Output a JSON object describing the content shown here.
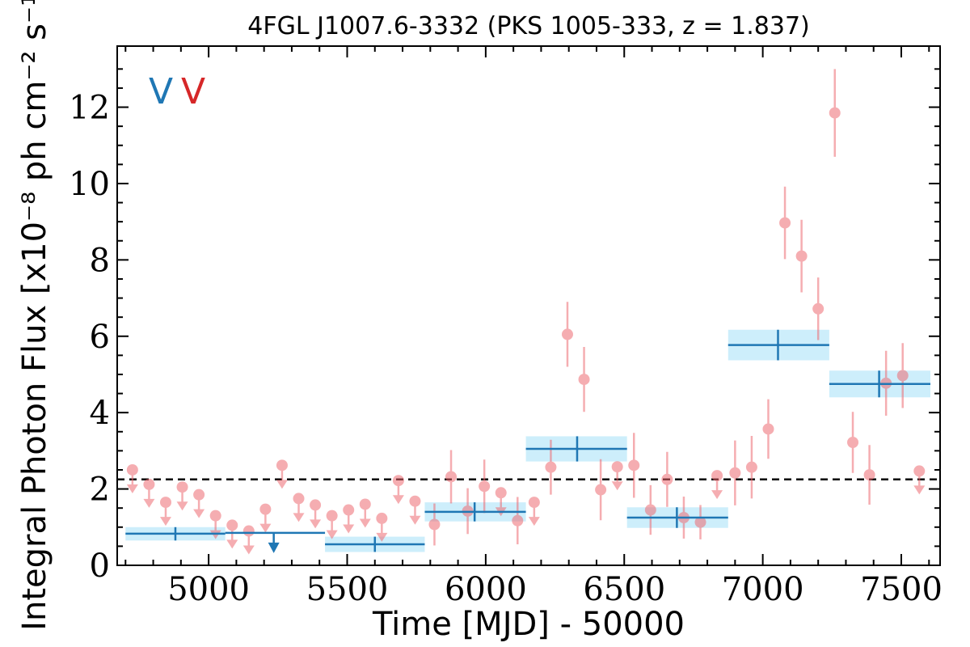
{
  "chart_data": {
    "type": "scatter",
    "title": "4FGL J1007.6-3332 (PKS 1005-333, z = 1.837)",
    "xlabel": "Time [MJD] - 50000",
    "ylabel": "Integral Photon Flux [x10⁻⁸ ph cm⁻² s⁻¹]",
    "xlim": [
      4670,
      7640
    ],
    "ylim": [
      0,
      13.6
    ],
    "x_ticks": [
      5000,
      5500,
      6000,
      6500,
      7000,
      7500
    ],
    "y_ticks": [
      0,
      2,
      4,
      6,
      8,
      10,
      12
    ],
    "x_tick_labels": [
      "5000",
      "5500",
      "6000",
      "6500",
      "7000",
      "7500"
    ],
    "y_tick_labels": [
      "0",
      "2",
      "4",
      "6",
      "8",
      "10",
      "12"
    ],
    "grid": false,
    "markers": [
      {
        "label": "V",
        "color": "#1f77b4"
      },
      {
        "label": "V",
        "color": "#d62728"
      }
    ],
    "reference_line": {
      "y": 2.25,
      "style": "dashed",
      "color": "#000000"
    },
    "colors": {
      "fine_points": "#ee6b72",
      "coarse_bins": "#1f77b4",
      "coarse_band": "#cdeefb",
      "upper_limit_coarse": "#1f77b4"
    },
    "coarse_bins": [
      {
        "x_start": 4700,
        "x_end": 5060,
        "x": 4880,
        "y": 0.83,
        "band": [
          0.65,
          1.0
        ]
      },
      {
        "x_start": 5420,
        "x_end": 5780,
        "x": 5600,
        "y": 0.55,
        "band": [
          0.35,
          0.75
        ]
      },
      {
        "x_start": 5780,
        "x_end": 6145,
        "x": 5960,
        "y": 1.4,
        "band": [
          1.15,
          1.65
        ]
      },
      {
        "x_start": 6145,
        "x_end": 6510,
        "x": 6330,
        "y": 3.05,
        "band": [
          2.72,
          3.38
        ]
      },
      {
        "x_start": 6510,
        "x_end": 6875,
        "x": 6690,
        "y": 1.25,
        "band": [
          0.98,
          1.52
        ]
      },
      {
        "x_start": 6875,
        "x_end": 7240,
        "x": 7055,
        "y": 5.77,
        "band": [
          5.37,
          6.17
        ]
      },
      {
        "x_start": 7240,
        "x_end": 7605,
        "x": 7420,
        "y": 4.75,
        "band": [
          4.4,
          5.1
        ]
      }
    ],
    "coarse_upper_limits": [
      {
        "x_start": 5060,
        "x_end": 5420,
        "x": 5235,
        "y": 0.85
      }
    ],
    "fine_points": [
      {
        "x": 5815,
        "y": 1.07,
        "err": 0.55
      },
      {
        "x": 5875,
        "y": 2.32,
        "err": 0.7
      },
      {
        "x": 5935,
        "y": 1.42,
        "err": 0.6
      },
      {
        "x": 5995,
        "y": 2.07,
        "err": 0.7
      },
      {
        "x": 6115,
        "y": 1.17,
        "err": 0.62
      },
      {
        "x": 6235,
        "y": 2.57,
        "err": 0.72
      },
      {
        "x": 6295,
        "y": 6.05,
        "err": 0.85
      },
      {
        "x": 6355,
        "y": 4.87,
        "err": 0.85
      },
      {
        "x": 6415,
        "y": 1.98,
        "err": 0.8
      },
      {
        "x": 6535,
        "y": 2.62,
        "err": 0.85
      },
      {
        "x": 6595,
        "y": 1.45,
        "err": 0.65
      },
      {
        "x": 6655,
        "y": 2.25,
        "err": 0.72
      },
      {
        "x": 6715,
        "y": 1.25,
        "err": 0.55
      },
      {
        "x": 6775,
        "y": 1.13,
        "err": 0.45
      },
      {
        "x": 6900,
        "y": 2.42,
        "err": 0.85
      },
      {
        "x": 6960,
        "y": 2.57,
        "err": 0.82
      },
      {
        "x": 7020,
        "y": 3.57,
        "err": 0.78
      },
      {
        "x": 7080,
        "y": 8.97,
        "err": 0.95
      },
      {
        "x": 7140,
        "y": 8.1,
        "err": 0.95
      },
      {
        "x": 7200,
        "y": 6.72,
        "err": 0.82
      },
      {
        "x": 7260,
        "y": 11.85,
        "err": 1.15
      },
      {
        "x": 7325,
        "y": 3.22,
        "err": 0.8
      },
      {
        "x": 7385,
        "y": 2.37,
        "err": 0.78
      },
      {
        "x": 7445,
        "y": 4.77,
        "err": 0.85
      },
      {
        "x": 7505,
        "y": 4.97,
        "err": 0.85
      }
    ],
    "fine_upper_limits": [
      {
        "x": 4725,
        "y": 2.5
      },
      {
        "x": 4785,
        "y": 2.12
      },
      {
        "x": 4845,
        "y": 1.65
      },
      {
        "x": 4905,
        "y": 2.05
      },
      {
        "x": 4965,
        "y": 1.85
      },
      {
        "x": 5025,
        "y": 1.3
      },
      {
        "x": 5085,
        "y": 1.05
      },
      {
        "x": 5145,
        "y": 0.9
      },
      {
        "x": 5205,
        "y": 1.47
      },
      {
        "x": 5265,
        "y": 2.62
      },
      {
        "x": 5325,
        "y": 1.75
      },
      {
        "x": 5385,
        "y": 1.58
      },
      {
        "x": 5445,
        "y": 1.3
      },
      {
        "x": 5505,
        "y": 1.45
      },
      {
        "x": 5565,
        "y": 1.6
      },
      {
        "x": 5625,
        "y": 1.23
      },
      {
        "x": 5685,
        "y": 2.22
      },
      {
        "x": 5745,
        "y": 1.68
      },
      {
        "x": 6055,
        "y": 1.9
      },
      {
        "x": 6175,
        "y": 1.65
      },
      {
        "x": 6475,
        "y": 2.58
      },
      {
        "x": 6835,
        "y": 2.35
      },
      {
        "x": 7565,
        "y": 2.47
      }
    ]
  }
}
